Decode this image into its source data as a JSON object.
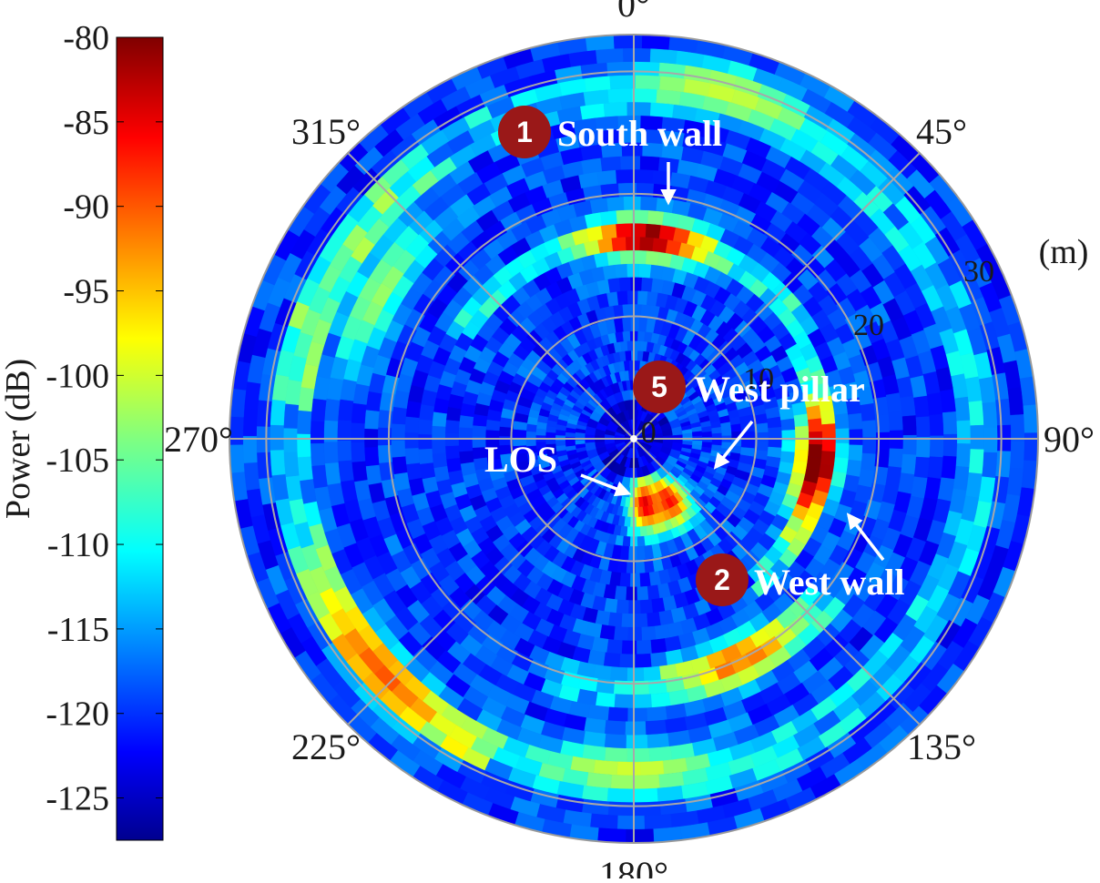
{
  "chart_data": {
    "type": "heatmap",
    "subtype": "polar",
    "colormap": "jet",
    "colorbar": {
      "label": "Power (dB)",
      "min": -127.5,
      "max": -80,
      "ticks": [
        "-80",
        "-85",
        "-90",
        "-95",
        "-100",
        "-105",
        "-110",
        "-115",
        "-120",
        "-125"
      ]
    },
    "radial_axis": {
      "unit_label": "(m)",
      "range": [
        0,
        33
      ],
      "ticks": [
        "0",
        "10",
        "20",
        "30"
      ]
    },
    "angular_axis": {
      "ticks": [
        "0°",
        "45°",
        "90°",
        "135°",
        "180°",
        "225°",
        "270°",
        "315°"
      ]
    },
    "grid": true,
    "peaks": [
      {
        "angle_deg": 4,
        "range_m": 16.5,
        "power_db": -88
      },
      {
        "angle_deg": 98,
        "range_m": 15,
        "power_db": -86
      },
      {
        "angle_deg": 170,
        "range_m": 5.5,
        "power_db": -84
      },
      {
        "angle_deg": 150,
        "range_m": 5.8,
        "power_db": -86
      },
      {
        "angle_deg": 155,
        "range_m": 20,
        "power_db": -98
      },
      {
        "angle_deg": 228,
        "range_m": 28,
        "power_db": -96
      },
      {
        "angle_deg": 300,
        "range_m": 24,
        "power_db": -102
      },
      {
        "angle_deg": 15,
        "range_m": 29.5,
        "power_db": -100
      },
      {
        "angle_deg": 180,
        "range_m": 27,
        "power_db": -100
      }
    ],
    "annotations": [
      {
        "number": "1",
        "text": "South wall"
      },
      {
        "number": "2",
        "text": "West wall"
      },
      {
        "number": "5",
        "text": "West pillar"
      },
      {
        "number": "",
        "text": "LOS"
      }
    ]
  }
}
